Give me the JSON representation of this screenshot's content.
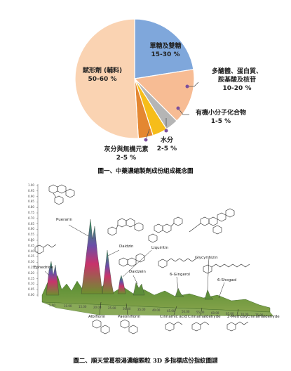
{
  "figure1": {
    "caption": "圖一、中藥濃縮製劑成份組成概念圖",
    "slices": [
      {
        "name": "單糖及雙糖",
        "range": "15-30 %",
        "share": 0.225,
        "color": "#7FA7DB"
      },
      {
        "name": "多醣體、蛋白質、胺基酸及核苷",
        "range": "10-20 %",
        "share": 0.15,
        "color": "#F7BC94"
      },
      {
        "name": "有機小分子化合物",
        "range": "1-5 %",
        "share": 0.035,
        "color": "#B5B5B5"
      },
      {
        "name": "水分",
        "range": "2-5 %",
        "share": 0.04,
        "color": "#F6BD1A"
      },
      {
        "name": "灰分與無機元素",
        "range": "2-5 %",
        "share": 0.04,
        "color": "#E48731"
      },
      {
        "name": "賦形劑 (輔料)",
        "range": "50-60 %",
        "share": 0.51,
        "color": "#FAD3B2"
      }
    ],
    "label_lines": {
      "sugar": [
        "單糖及雙糖",
        "15-30 %"
      ],
      "poly": [
        "多醣體、蛋白質、",
        "胺基酸及核苷",
        "10-20 %"
      ],
      "organic": [
        "有機小分子化合物",
        "1-5 %"
      ],
      "water": [
        "水分",
        "2-5 %"
      ],
      "ash": [
        "灰分與無機元素",
        "2-5 %"
      ],
      "excipient": [
        "賦形劑 (輔料)",
        "50-60 %"
      ]
    }
  },
  "figure2": {
    "caption": "圖二、順天堂葛根湯濃縮顆粒 3D 多指標成份指紋圖譜",
    "compounds_top": [
      "Puerarin",
      "Daidzin",
      "Liquiritin",
      "Daidzein",
      "Ephedrine",
      "6-Gingerol",
      "Glycyrrhizin",
      "6-Shogaol"
    ],
    "compounds_bottom": [
      "Albiflorin",
      "Paeoniflorin",
      "Cinnamic acid",
      "Cinnamaldehyde",
      "2-Methoxycinnamaldehyde"
    ],
    "axis_value": "1",
    "y_ticks": [
      "1.00",
      "0.95",
      "0.90",
      "0.85",
      "0.80",
      "0.75",
      "0.70",
      "0.65",
      "0.60",
      "0.55",
      "0.50",
      "0.45",
      "0.40",
      "0.35",
      "0.30",
      "0.25",
      "0.20",
      "0.15",
      "0.10",
      "0.05",
      "0.00"
    ],
    "x_ticks": [
      "5.00",
      "10.00",
      "15.00",
      "20.00",
      "25.00",
      "30.00",
      "35.00",
      "40.00",
      "45.00",
      "50.00",
      "55.00",
      "60.00",
      "65.00",
      "70.00",
      "75.00"
    ]
  }
}
